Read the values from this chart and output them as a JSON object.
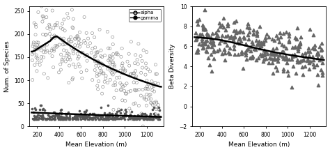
{
  "left_panel": {
    "xlabel": "Mean Elevation (m)",
    "ylabel": "Num. of Species",
    "xlim": [
      130,
      1350
    ],
    "ylim": [
      0,
      260
    ],
    "yticks": [
      0,
      50,
      100,
      150,
      200,
      250
    ],
    "xticks": [
      200,
      400,
      600,
      800,
      1000,
      1200
    ],
    "alpha_scatter_color": "#888888",
    "gamma_scatter_color": "#555555",
    "curve_color": "#000000",
    "legend_labels": [
      "alpha",
      "gamma"
    ]
  },
  "right_panel": {
    "xlabel": "Mean Elevation (m)",
    "ylabel": "Beta Diversity",
    "xlim": [
      130,
      1350
    ],
    "ylim": [
      -2,
      10
    ],
    "yticks": [
      -2,
      0,
      2,
      4,
      6,
      8,
      10
    ],
    "xticks": [
      200,
      400,
      600,
      800,
      1000,
      1200
    ],
    "scatter_color": "#666666",
    "curve_color": "#000000"
  },
  "seed": 42
}
